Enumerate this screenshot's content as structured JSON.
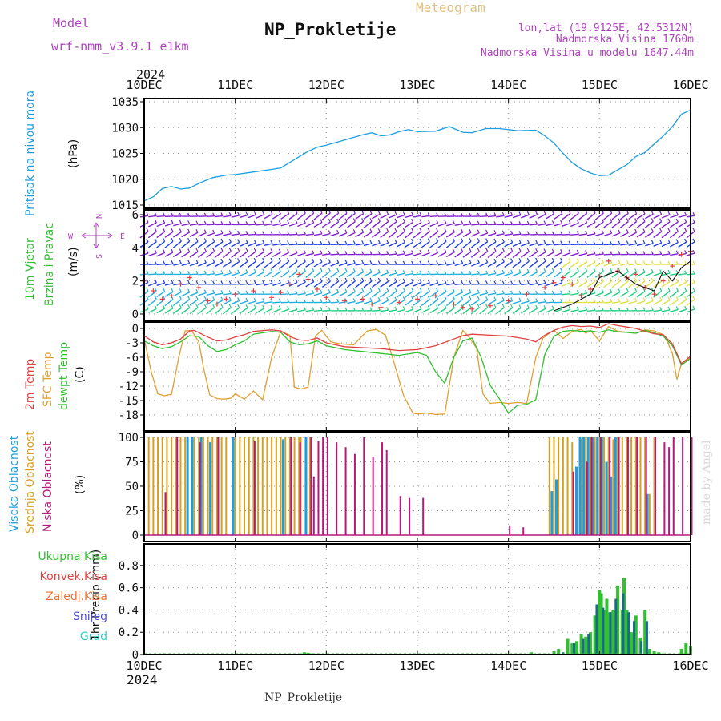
{
  "header": {
    "model_label": "Model",
    "model_name": "wrf-nmm_v3.9.1 e1km",
    "title": "NP_Prokletije",
    "subtitle": "Meteogram",
    "lonlat": "lon,lat (19.9125E, 42.5312N)",
    "altitude": "Nadmorska Visina 1760m",
    "model_altitude": "Nadmorska Visina u modelu 1647.44m",
    "year_top": "2024",
    "year_bottom": "2024",
    "footer_station": "NP_Prokletije",
    "watermark": "made by Angel"
  },
  "compass": {
    "n": "N",
    "s": "S",
    "w": "W",
    "e": "E"
  },
  "colors": {
    "pressure": "#1e9ee0",
    "temp2m": "#e04040",
    "sfc": "#e0a030",
    "dewpt": "#30c030",
    "cloud_high": "#1e9ee0",
    "cloud_mid": "#d8a020",
    "cloud_low": "#b8187c",
    "precip_total": "#30c030",
    "precip_snow": "#5050e0",
    "precip_graupel": "#30c8c8",
    "wind_violet": "#8020d0",
    "wind_blue": "#2040e0",
    "wind_cyan": "#20b0e0",
    "wind_green": "#20d080",
    "wind_yellow": "#e0e040",
    "title_gold": "#e0c080",
    "header_purple": "#b040c0"
  },
  "chart_data": [
    {
      "type": "line",
      "panel": "pressure",
      "ylabel": "Pritisak na nivou mora",
      "unit": "(hPa)",
      "ylim": [
        1015,
        1035
      ],
      "yticks": [
        "1015",
        "1020",
        "1025",
        "1030",
        "1035"
      ],
      "xticks": [
        "10DEC",
        "11DEC",
        "12DEC",
        "13DEC",
        "14DEC",
        "15DEC",
        "16DEC"
      ],
      "grid": true,
      "series": [
        {
          "x": [
            0,
            0.1,
            0.2,
            0.3,
            0.4,
            0.5,
            0.6,
            0.75,
            0.9,
            1.0,
            1.2,
            1.4,
            1.5,
            1.65,
            1.8,
            1.9,
            2.0,
            2.2,
            2.4,
            2.5,
            2.6,
            2.7,
            2.8,
            2.9,
            3.0,
            3.2,
            3.35,
            3.5,
            3.6,
            3.75,
            3.9,
            4.1,
            4.3,
            4.4,
            4.5,
            4.6,
            4.7,
            4.8,
            4.9,
            5.0,
            5.1,
            5.2,
            5.3,
            5.4,
            5.5,
            5.6,
            5.7,
            5.8,
            5.9,
            6.0
          ],
          "y": [
            1015.8,
            1016.6,
            1018.2,
            1018.6,
            1018.1,
            1018.3,
            1019.2,
            1020.3,
            1020.8,
            1020.9,
            1021.4,
            1021.9,
            1022.2,
            1023.8,
            1025.4,
            1026.2,
            1026.6,
            1027.6,
            1028.6,
            1029.0,
            1028.4,
            1028.6,
            1029.2,
            1029.6,
            1029.2,
            1029.3,
            1030.2,
            1029.1,
            1029.0,
            1029.8,
            1029.8,
            1029.4,
            1029.5,
            1028.4,
            1027.0,
            1025.0,
            1023.2,
            1022.0,
            1021.2,
            1020.7,
            1020.8,
            1021.8,
            1022.8,
            1024.4,
            1025.2,
            1026.8,
            1028.4,
            1030.2,
            1032.6,
            1033.4
          ]
        }
      ]
    },
    {
      "type": "scatter",
      "panel": "wind",
      "ylabel": "10m Vjetar Brzina i Pravac",
      "unit": "(m/s)",
      "ylim": [
        0,
        6
      ],
      "yticks": [
        "0",
        "2",
        "4",
        "6"
      ],
      "series": [
        {
          "x": [
            0,
            0.1,
            0.2,
            0.3,
            0.4,
            0.5,
            0.6,
            0.7,
            0.8,
            0.9,
            1.0,
            1.2,
            1.4,
            1.5,
            1.6,
            1.7,
            1.8,
            1.9,
            2.0,
            2.2,
            2.4,
            2.5,
            2.6,
            2.8,
            3.0,
            3.2,
            3.4,
            3.5,
            3.6,
            3.8,
            4.0,
            4.2,
            4.4,
            4.5,
            4.6,
            4.7,
            4.8,
            4.9,
            5.0,
            5.1,
            5.2,
            5.3,
            5.4,
            5.5,
            5.6,
            5.7,
            5.8,
            5.9,
            6.0
          ],
          "y": [
            2.0,
            1.4,
            0.9,
            1.1,
            1.8,
            2.2,
            1.6,
            0.8,
            0.6,
            0.9,
            1.2,
            1.4,
            1.0,
            1.3,
            1.8,
            2.4,
            2.1,
            1.5,
            1.0,
            0.8,
            0.9,
            0.6,
            0.4,
            0.7,
            0.9,
            1.1,
            0.6,
            0.4,
            0.3,
            0.5,
            0.8,
            1.2,
            1.6,
            1.9,
            2.2,
            1.8,
            1.1,
            1.5,
            2.3,
            3.2,
            2.6,
            2.2,
            2.4,
            1.6,
            1.2,
            2.0,
            2.9,
            3.6,
            3.8
          ]
        },
        {
          "x": [
            4.5,
            4.7,
            4.9,
            5.0,
            5.2,
            5.4,
            5.6,
            5.7,
            5.8,
            5.9,
            6.0
          ],
          "y": [
            0.2,
            0.6,
            1.2,
            2.2,
            2.6,
            1.8,
            1.4,
            2.6,
            2.0,
            2.8,
            3.2
          ]
        }
      ]
    },
    {
      "type": "line",
      "panel": "temperature",
      "ylabel": "2m Temp",
      "ylabel2": "SFC Temp",
      "ylabel3": "dewpt Temp",
      "unit": "(C)",
      "ylim": [
        -20,
        1
      ],
      "yticks": [
        "0",
        "-3",
        "-6",
        "-9",
        "-12",
        "-15",
        "-18"
      ],
      "series": [
        {
          "x": [
            0,
            0.1,
            0.2,
            0.3,
            0.4,
            0.5,
            0.55,
            0.7,
            0.8,
            0.9,
            1.0,
            1.1,
            1.2,
            1.4,
            1.5,
            1.6,
            1.7,
            1.8,
            1.9,
            2.0,
            2.2,
            2.4,
            2.6,
            2.8,
            3.0,
            3.2,
            3.4,
            3.5,
            3.6,
            3.8,
            4.0,
            4.2,
            4.3,
            4.4,
            4.5,
            4.6,
            4.7,
            4.8,
            4.9,
            5.0,
            5.1,
            5.2,
            5.3,
            5.4,
            5.5,
            5.6,
            5.7,
            5.8,
            5.9,
            6.0
          ],
          "y": [
            -1.5,
            -2.8,
            -3.4,
            -3.0,
            -2.2,
            -0.5,
            -0.4,
            -1.8,
            -2.6,
            -2.4,
            -1.8,
            -1.3,
            -0.6,
            -0.3,
            -0.5,
            -1.7,
            -2.4,
            -2.5,
            -2.0,
            -3.0,
            -3.8,
            -4.0,
            -4.2,
            -4.6,
            -4.4,
            -3.6,
            -2.2,
            -1.5,
            -1.2,
            -1.4,
            -1.6,
            -2.2,
            -2.8,
            -1.4,
            -0.4,
            0.3,
            0.6,
            0.4,
            0.5,
            0.2,
            1.0,
            0.6,
            0.3,
            0.0,
            -0.6,
            -1.1,
            -1.3,
            -3.2,
            -7.3,
            -5.8
          ]
        },
        {
          "x": [
            0,
            0.08,
            0.15,
            0.22,
            0.3,
            0.38,
            0.45,
            0.52,
            0.6,
            0.65,
            0.72,
            0.8,
            0.88,
            0.95,
            1.0,
            1.1,
            1.2,
            1.3,
            1.4,
            1.5,
            1.6,
            1.65,
            1.72,
            1.8,
            1.88,
            1.95,
            2.05,
            2.15,
            2.3,
            2.45,
            2.55,
            2.65,
            2.75,
            2.85,
            2.95,
            3.0,
            3.1,
            3.2,
            3.3,
            3.4,
            3.5,
            3.58,
            3.65,
            3.72,
            3.8,
            3.9,
            4.0,
            4.1,
            4.2,
            4.3,
            4.38,
            4.45,
            4.5,
            4.55,
            4.6,
            4.7,
            4.8,
            4.85,
            4.9,
            5.0,
            5.1,
            5.2,
            5.3,
            5.4,
            5.5,
            5.6,
            5.7,
            5.75,
            5.8,
            5.85,
            5.9,
            6.0
          ],
          "y": [
            -2.2,
            -9.2,
            -13.6,
            -14.0,
            -13.7,
            -6.0,
            -0.5,
            -0.4,
            -2.8,
            -8.0,
            -13.8,
            -14.6,
            -14.7,
            -14.5,
            -13.6,
            -14.7,
            -13.0,
            -14.8,
            -6.0,
            -0.6,
            -1.4,
            -12.2,
            -12.6,
            -12.2,
            -1.6,
            -0.4,
            -2.8,
            -3.2,
            -3.4,
            -0.5,
            -0.2,
            -1.4,
            -7.5,
            -14.0,
            -17.6,
            -17.8,
            -17.6,
            -17.9,
            -17.8,
            -6.0,
            -0.4,
            -2.1,
            -4.1,
            -13.6,
            -15.6,
            -15.4,
            -15.6,
            -15.4,
            -15.6,
            -6.0,
            -2.0,
            -1.0,
            -0.4,
            -1.2,
            -2.1,
            -0.6,
            -0.2,
            -1.0,
            -0.4,
            -2.6,
            0.4,
            -0.6,
            -0.8,
            -1.0,
            -0.3,
            -0.5,
            -1.3,
            -3.0,
            -5.2,
            -10.6,
            -7.3,
            -6.0
          ]
        },
        {
          "x": [
            0,
            0.1,
            0.2,
            0.3,
            0.4,
            0.5,
            0.6,
            0.7,
            0.8,
            0.9,
            1.0,
            1.1,
            1.2,
            1.4,
            1.5,
            1.6,
            1.7,
            1.8,
            1.9,
            2.0,
            2.2,
            2.4,
            2.6,
            2.8,
            3.0,
            3.1,
            3.2,
            3.3,
            3.4,
            3.5,
            3.6,
            3.7,
            3.8,
            3.9,
            4.0,
            4.1,
            4.2,
            4.3,
            4.4,
            4.5,
            4.6,
            4.7,
            4.8,
            4.9,
            5.0,
            5.1,
            5.2,
            5.3,
            5.4,
            5.5,
            5.6,
            5.7,
            5.8,
            5.9,
            6.0
          ],
          "y": [
            -2.6,
            -3.6,
            -4.2,
            -3.8,
            -2.8,
            -1.5,
            -1.7,
            -3.6,
            -4.8,
            -4.4,
            -3.4,
            -2.6,
            -1.2,
            -0.6,
            -0.8,
            -2.8,
            -3.4,
            -3.2,
            -2.6,
            -3.6,
            -4.4,
            -4.8,
            -5.2,
            -5.6,
            -5.0,
            -5.6,
            -9.0,
            -11.4,
            -6.0,
            -2.6,
            -2.0,
            -6.0,
            -11.8,
            -14.6,
            -17.6,
            -16.0,
            -15.8,
            -14.8,
            -5.4,
            -1.6,
            -0.6,
            -0.4,
            -0.6,
            -0.5,
            -0.8,
            -0.3,
            -0.7,
            -0.8,
            -1.0,
            -0.4,
            -0.9,
            -1.6,
            -3.6,
            -7.6,
            -6.2
          ]
        }
      ]
    },
    {
      "type": "bar",
      "panel": "cloud",
      "ylabel": "Visoka Oblacnost",
      "ylabel2": "Srednja Oblacnost",
      "ylabel3": "Niska Oblacnost",
      "unit": "(%)",
      "ylim": [
        0,
        100
      ],
      "yticks": [
        "0",
        "25",
        "50",
        "75",
        "100"
      ],
      "series": [
        {
          "x": [
            0.45,
            0.5,
            0.6,
            0.7,
            0.95,
            1.5,
            1.75,
            4.45,
            4.5,
            4.72,
            4.76,
            4.8,
            4.85,
            4.9,
            4.95,
            5.0,
            5.05,
            5.1,
            5.15,
            5.5
          ],
          "y": [
            100,
            100,
            100,
            95,
            100,
            98,
            100,
            45,
            57,
            70,
            100,
            100,
            100,
            100,
            100,
            100,
            75,
            60,
            100,
            42
          ]
        },
        {
          "x": [
            0.05,
            0.1,
            0.15,
            0.2,
            0.25,
            0.3,
            0.35,
            0.4,
            0.45,
            0.55,
            0.6,
            0.65,
            0.7,
            0.75,
            0.8,
            0.85,
            0.9,
            1.0,
            1.05,
            1.1,
            1.15,
            1.2,
            1.25,
            1.3,
            1.35,
            1.4,
            1.45,
            1.5,
            1.55,
            1.6,
            1.65,
            1.7,
            1.72,
            1.78,
            1.82,
            4.45,
            4.5,
            4.55,
            4.6,
            4.65,
            4.7,
            4.8,
            4.85,
            4.9,
            4.95,
            5.0,
            5.05,
            5.1,
            5.15,
            5.2,
            5.25,
            5.3,
            5.35,
            5.4,
            5.45,
            5.5,
            5.55,
            5.6
          ],
          "y": [
            100,
            100,
            100,
            100,
            100,
            100,
            100,
            100,
            100,
            100,
            100,
            100,
            100,
            100,
            100,
            100,
            100,
            100,
            100,
            100,
            100,
            100,
            100,
            100,
            100,
            100,
            100,
            100,
            100,
            100,
            100,
            100,
            100,
            100,
            100,
            100,
            100,
            100,
            100,
            100,
            95,
            98,
            100,
            100,
            100,
            100,
            100,
            100,
            98,
            100,
            100,
            100,
            100,
            100,
            100,
            100,
            42,
            100
          ]
        },
        {
          "x": [
            0.22,
            0.35,
            0.6,
            0.8,
            1.2,
            1.6,
            1.7,
            1.82,
            1.85,
            1.9,
            1.95,
            2.0,
            2.1,
            2.2,
            2.3,
            2.4,
            2.5,
            2.6,
            2.65,
            2.8,
            2.9,
            3.05,
            4.0,
            4.15,
            4.7,
            4.85,
            4.9,
            5.0,
            5.1,
            5.2,
            5.3,
            5.4,
            5.5,
            5.6,
            5.7,
            5.75,
            5.8,
            5.9,
            6.0
          ],
          "y": [
            44,
            100,
            95,
            100,
            96,
            100,
            95,
            100,
            60,
            96,
            100,
            100,
            95,
            90,
            83,
            100,
            80,
            95,
            87,
            40,
            38,
            38,
            10,
            8,
            65,
            75,
            100,
            100,
            100,
            100,
            100,
            100,
            100,
            100,
            95,
            90,
            100,
            100,
            100
          ]
        }
      ]
    },
    {
      "type": "bar",
      "panel": "precip",
      "ylabel": "1hr Precip",
      "unit": "(mm)",
      "ylim": [
        0,
        0.95
      ],
      "yticks": [
        "0",
        "0.2",
        "0.4",
        "0.6",
        "0.8"
      ],
      "legend": [
        "Ukupna Kisa",
        "Konvek.Kisa",
        "Zaledj.Kisa",
        "Snijeg",
        "Grad"
      ],
      "legend_colors": [
        "#30c030",
        "#e04040",
        "#f07030",
        "#5050e0",
        "#30c8c8"
      ],
      "series": [
        {
          "x": [
            1.72,
            1.76,
            1.8,
            1.84,
            4.25,
            4.5,
            4.55,
            4.65,
            4.7,
            4.75,
            4.8,
            4.85,
            4.9,
            4.95,
            5.0,
            5.02,
            5.05,
            5.08,
            5.1,
            5.15,
            5.2,
            5.25,
            5.27,
            5.3,
            5.35,
            5.4,
            5.45,
            5.5,
            5.55,
            5.6,
            5.65,
            5.7,
            5.9,
            5.95,
            6.0
          ],
          "y": [
            0.01,
            0.02,
            0.015,
            0.01,
            0.02,
            0.03,
            0.05,
            0.14,
            0.1,
            0.12,
            0.18,
            0.16,
            0.2,
            0.35,
            0.58,
            0.55,
            0.4,
            0.5,
            0.38,
            0.4,
            0.62,
            0.4,
            0.69,
            0.4,
            0.2,
            0.35,
            0.15,
            0.4,
            0.05,
            0.03,
            0.02,
            0.01,
            0.05,
            0.1,
            0.08
          ]
        },
        {
          "x": [
            4.6,
            4.72,
            4.82,
            4.88,
            4.97,
            5.04,
            5.12,
            5.18,
            5.26,
            5.32,
            5.38,
            5.46,
            5.52
          ],
          "y": [
            0.02,
            0.1,
            0.14,
            0.18,
            0.45,
            0.42,
            0.38,
            0.5,
            0.55,
            0.38,
            0.3,
            0.12,
            0.3
          ]
        }
      ]
    }
  ]
}
